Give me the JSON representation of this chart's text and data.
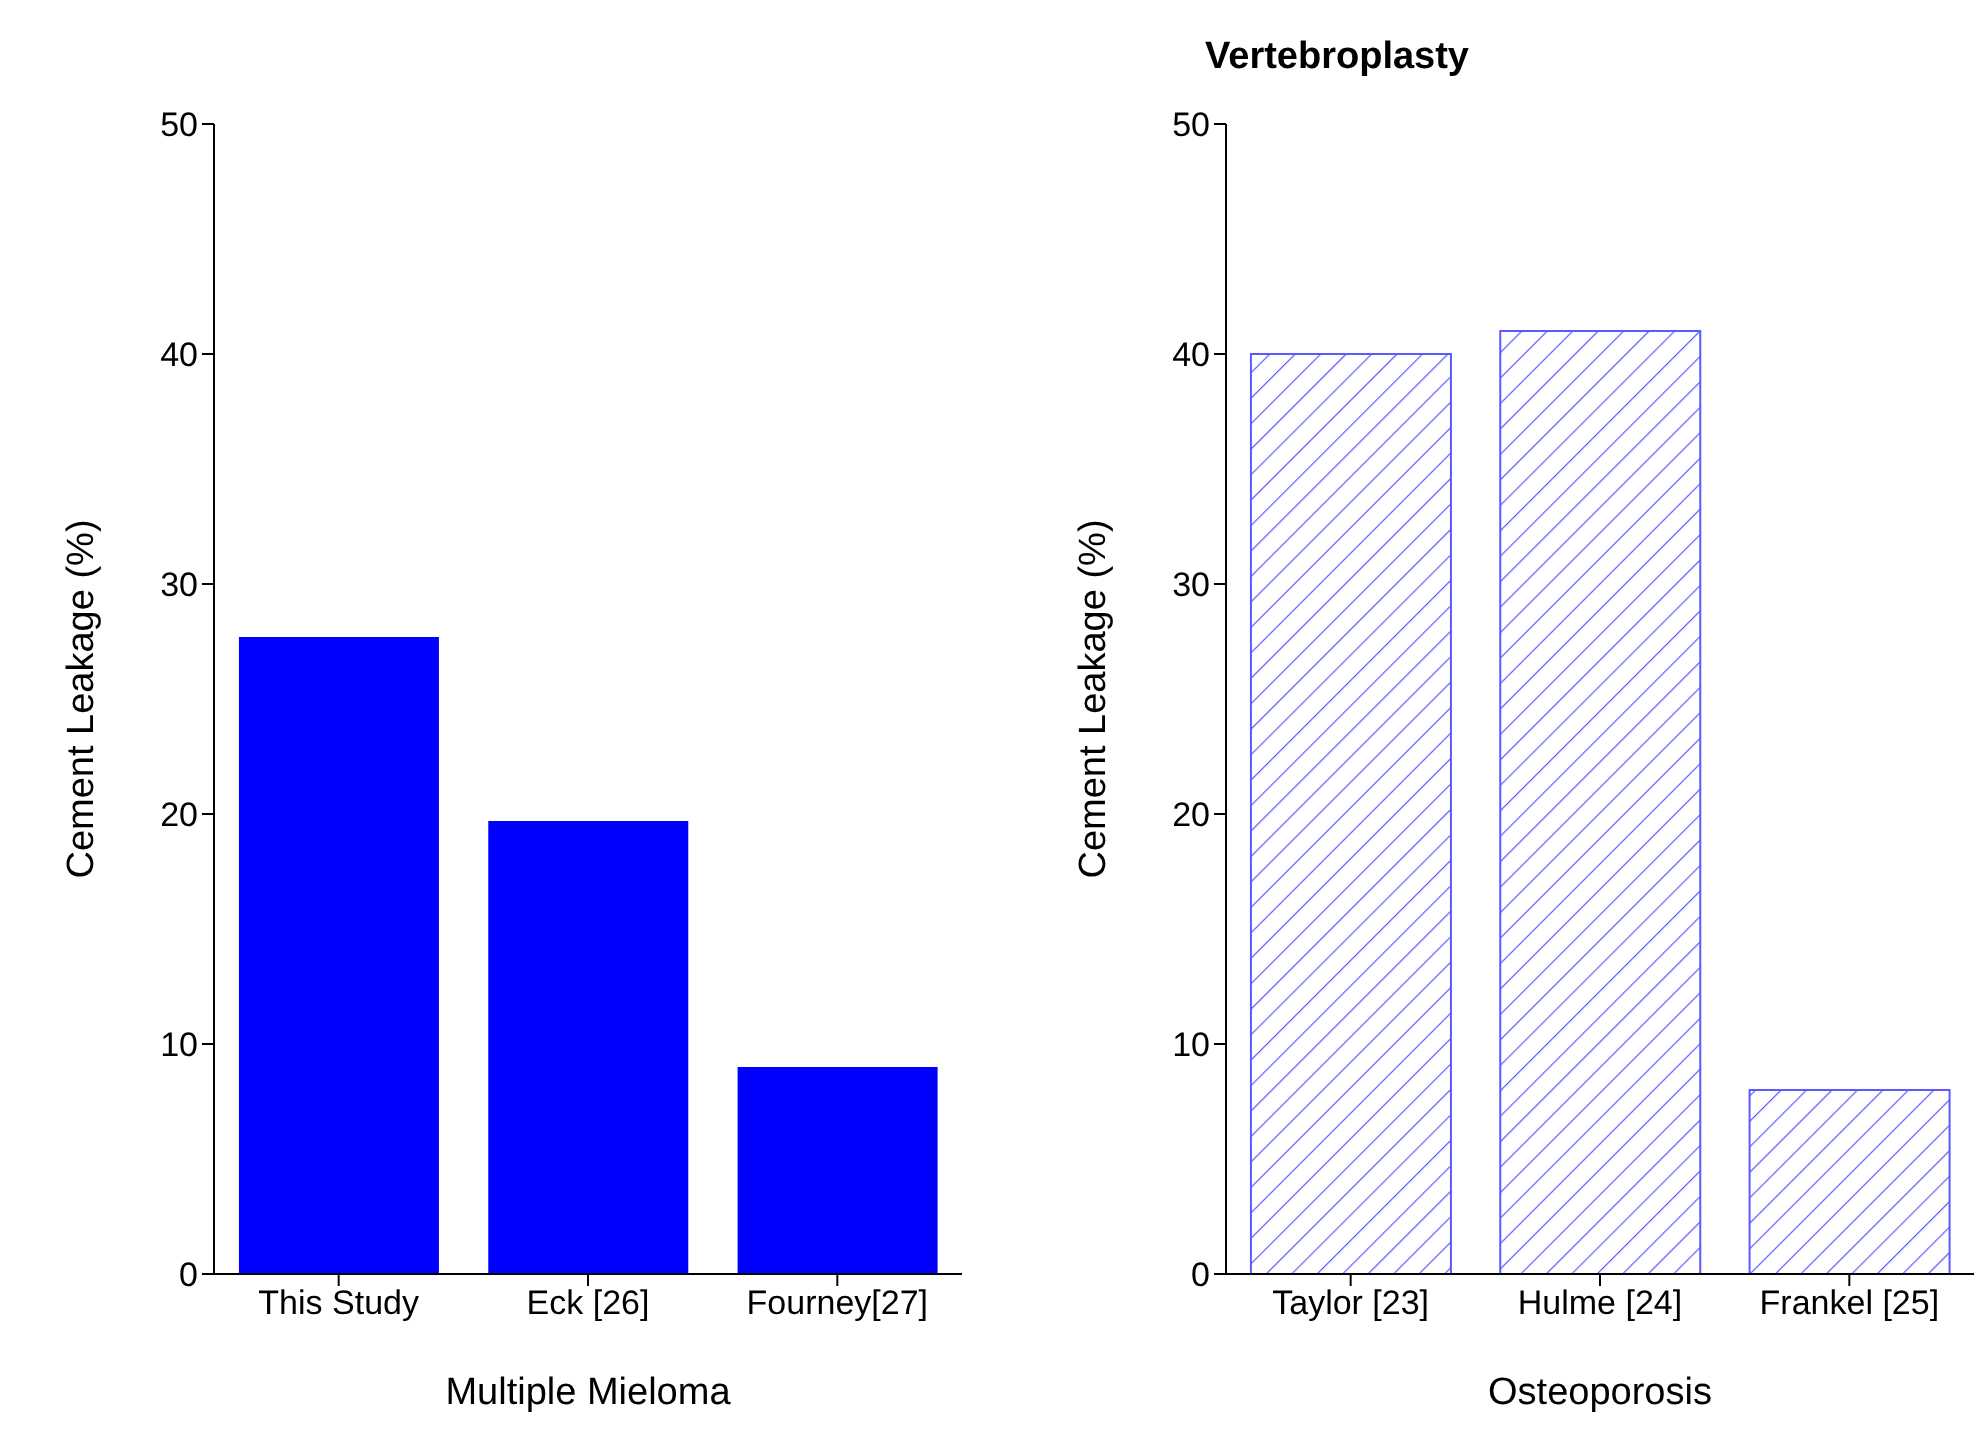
{
  "chart_data": [
    {
      "type": "bar",
      "categories": [
        "This Study",
        "Eck [26]",
        "Fourney[27]"
      ],
      "series": [
        {
          "color": "#0000ff",
          "values": [
            27.7,
            19.7,
            9.0
          ]
        }
      ],
      "xlabel": "Multiple Mieloma",
      "ylabel": "Cement Leakage (%)",
      "ylim": [
        0,
        50
      ],
      "yticks": [
        0,
        10,
        20,
        30,
        40,
        50
      ],
      "grid": false,
      "legend": false
    },
    {
      "type": "bar",
      "title": "Vertebroplasty",
      "categories": [
        "Taylor [23]",
        "Hulme [24]",
        "Frankel [25]"
      ],
      "series": [
        {
          "color": "#5a5aff",
          "values": [
            40,
            41,
            8
          ]
        }
      ],
      "xlabel": "Osteoporosis",
      "ylabel": "Cement Leakage (%)",
      "ylim": [
        0,
        50
      ],
      "yticks": [
        0,
        10,
        20,
        30,
        40,
        50
      ],
      "grid": false,
      "legend": false
    }
  ]
}
